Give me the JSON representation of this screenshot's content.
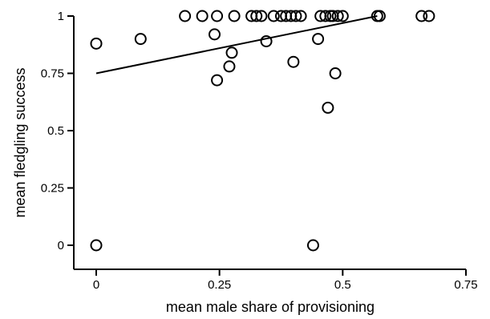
{
  "chart_data": {
    "type": "scatter",
    "xlabel": "mean male share of provisioning",
    "ylabel": "mean fledgling success",
    "xlim": [
      -0.05,
      0.75
    ],
    "ylim": [
      0,
      1
    ],
    "x_ticks": [
      0,
      0.25,
      0.5,
      0.75
    ],
    "x_tick_labels": [
      "0",
      "0.25",
      "0.5",
      "0.75"
    ],
    "y_ticks": [
      0,
      0.25,
      0.5,
      0.75,
      1
    ],
    "y_tick_labels": [
      "0",
      "0.25",
      "0.5",
      "0.75",
      "1"
    ],
    "grid": false,
    "marker": "open-circle",
    "points": [
      {
        "x": 0.0,
        "y": 0.0
      },
      {
        "x": 0.0,
        "y": 0.88
      },
      {
        "x": 0.09,
        "y": 0.9
      },
      {
        "x": 0.18,
        "y": 1.0
      },
      {
        "x": 0.215,
        "y": 1.0
      },
      {
        "x": 0.245,
        "y": 1.0
      },
      {
        "x": 0.24,
        "y": 0.92
      },
      {
        "x": 0.245,
        "y": 0.72
      },
      {
        "x": 0.27,
        "y": 0.78
      },
      {
        "x": 0.275,
        "y": 0.84
      },
      {
        "x": 0.28,
        "y": 1.0
      },
      {
        "x": 0.315,
        "y": 1.0
      },
      {
        "x": 0.325,
        "y": 1.0
      },
      {
        "x": 0.335,
        "y": 1.0
      },
      {
        "x": 0.345,
        "y": 0.89
      },
      {
        "x": 0.36,
        "y": 1.0
      },
      {
        "x": 0.375,
        "y": 1.0
      },
      {
        "x": 0.385,
        "y": 1.0
      },
      {
        "x": 0.395,
        "y": 1.0
      },
      {
        "x": 0.4,
        "y": 0.8
      },
      {
        "x": 0.405,
        "y": 1.0
      },
      {
        "x": 0.415,
        "y": 1.0
      },
      {
        "x": 0.44,
        "y": 0.0
      },
      {
        "x": 0.45,
        "y": 0.9
      },
      {
        "x": 0.455,
        "y": 1.0
      },
      {
        "x": 0.465,
        "y": 1.0
      },
      {
        "x": 0.47,
        "y": 0.6
      },
      {
        "x": 0.475,
        "y": 1.0
      },
      {
        "x": 0.48,
        "y": 1.0
      },
      {
        "x": 0.485,
        "y": 0.75
      },
      {
        "x": 0.49,
        "y": 1.0
      },
      {
        "x": 0.5,
        "y": 1.0
      },
      {
        "x": 0.57,
        "y": 1.0
      },
      {
        "x": 0.575,
        "y": 1.0
      },
      {
        "x": 0.66,
        "y": 1.0
      },
      {
        "x": 0.675,
        "y": 1.0
      }
    ],
    "trend_line": {
      "x": [
        0.0,
        0.57
      ],
      "y": [
        0.75,
        1.0
      ]
    },
    "colors": {
      "marker": "#000000",
      "line": "#000000",
      "axis": "#000000"
    }
  }
}
